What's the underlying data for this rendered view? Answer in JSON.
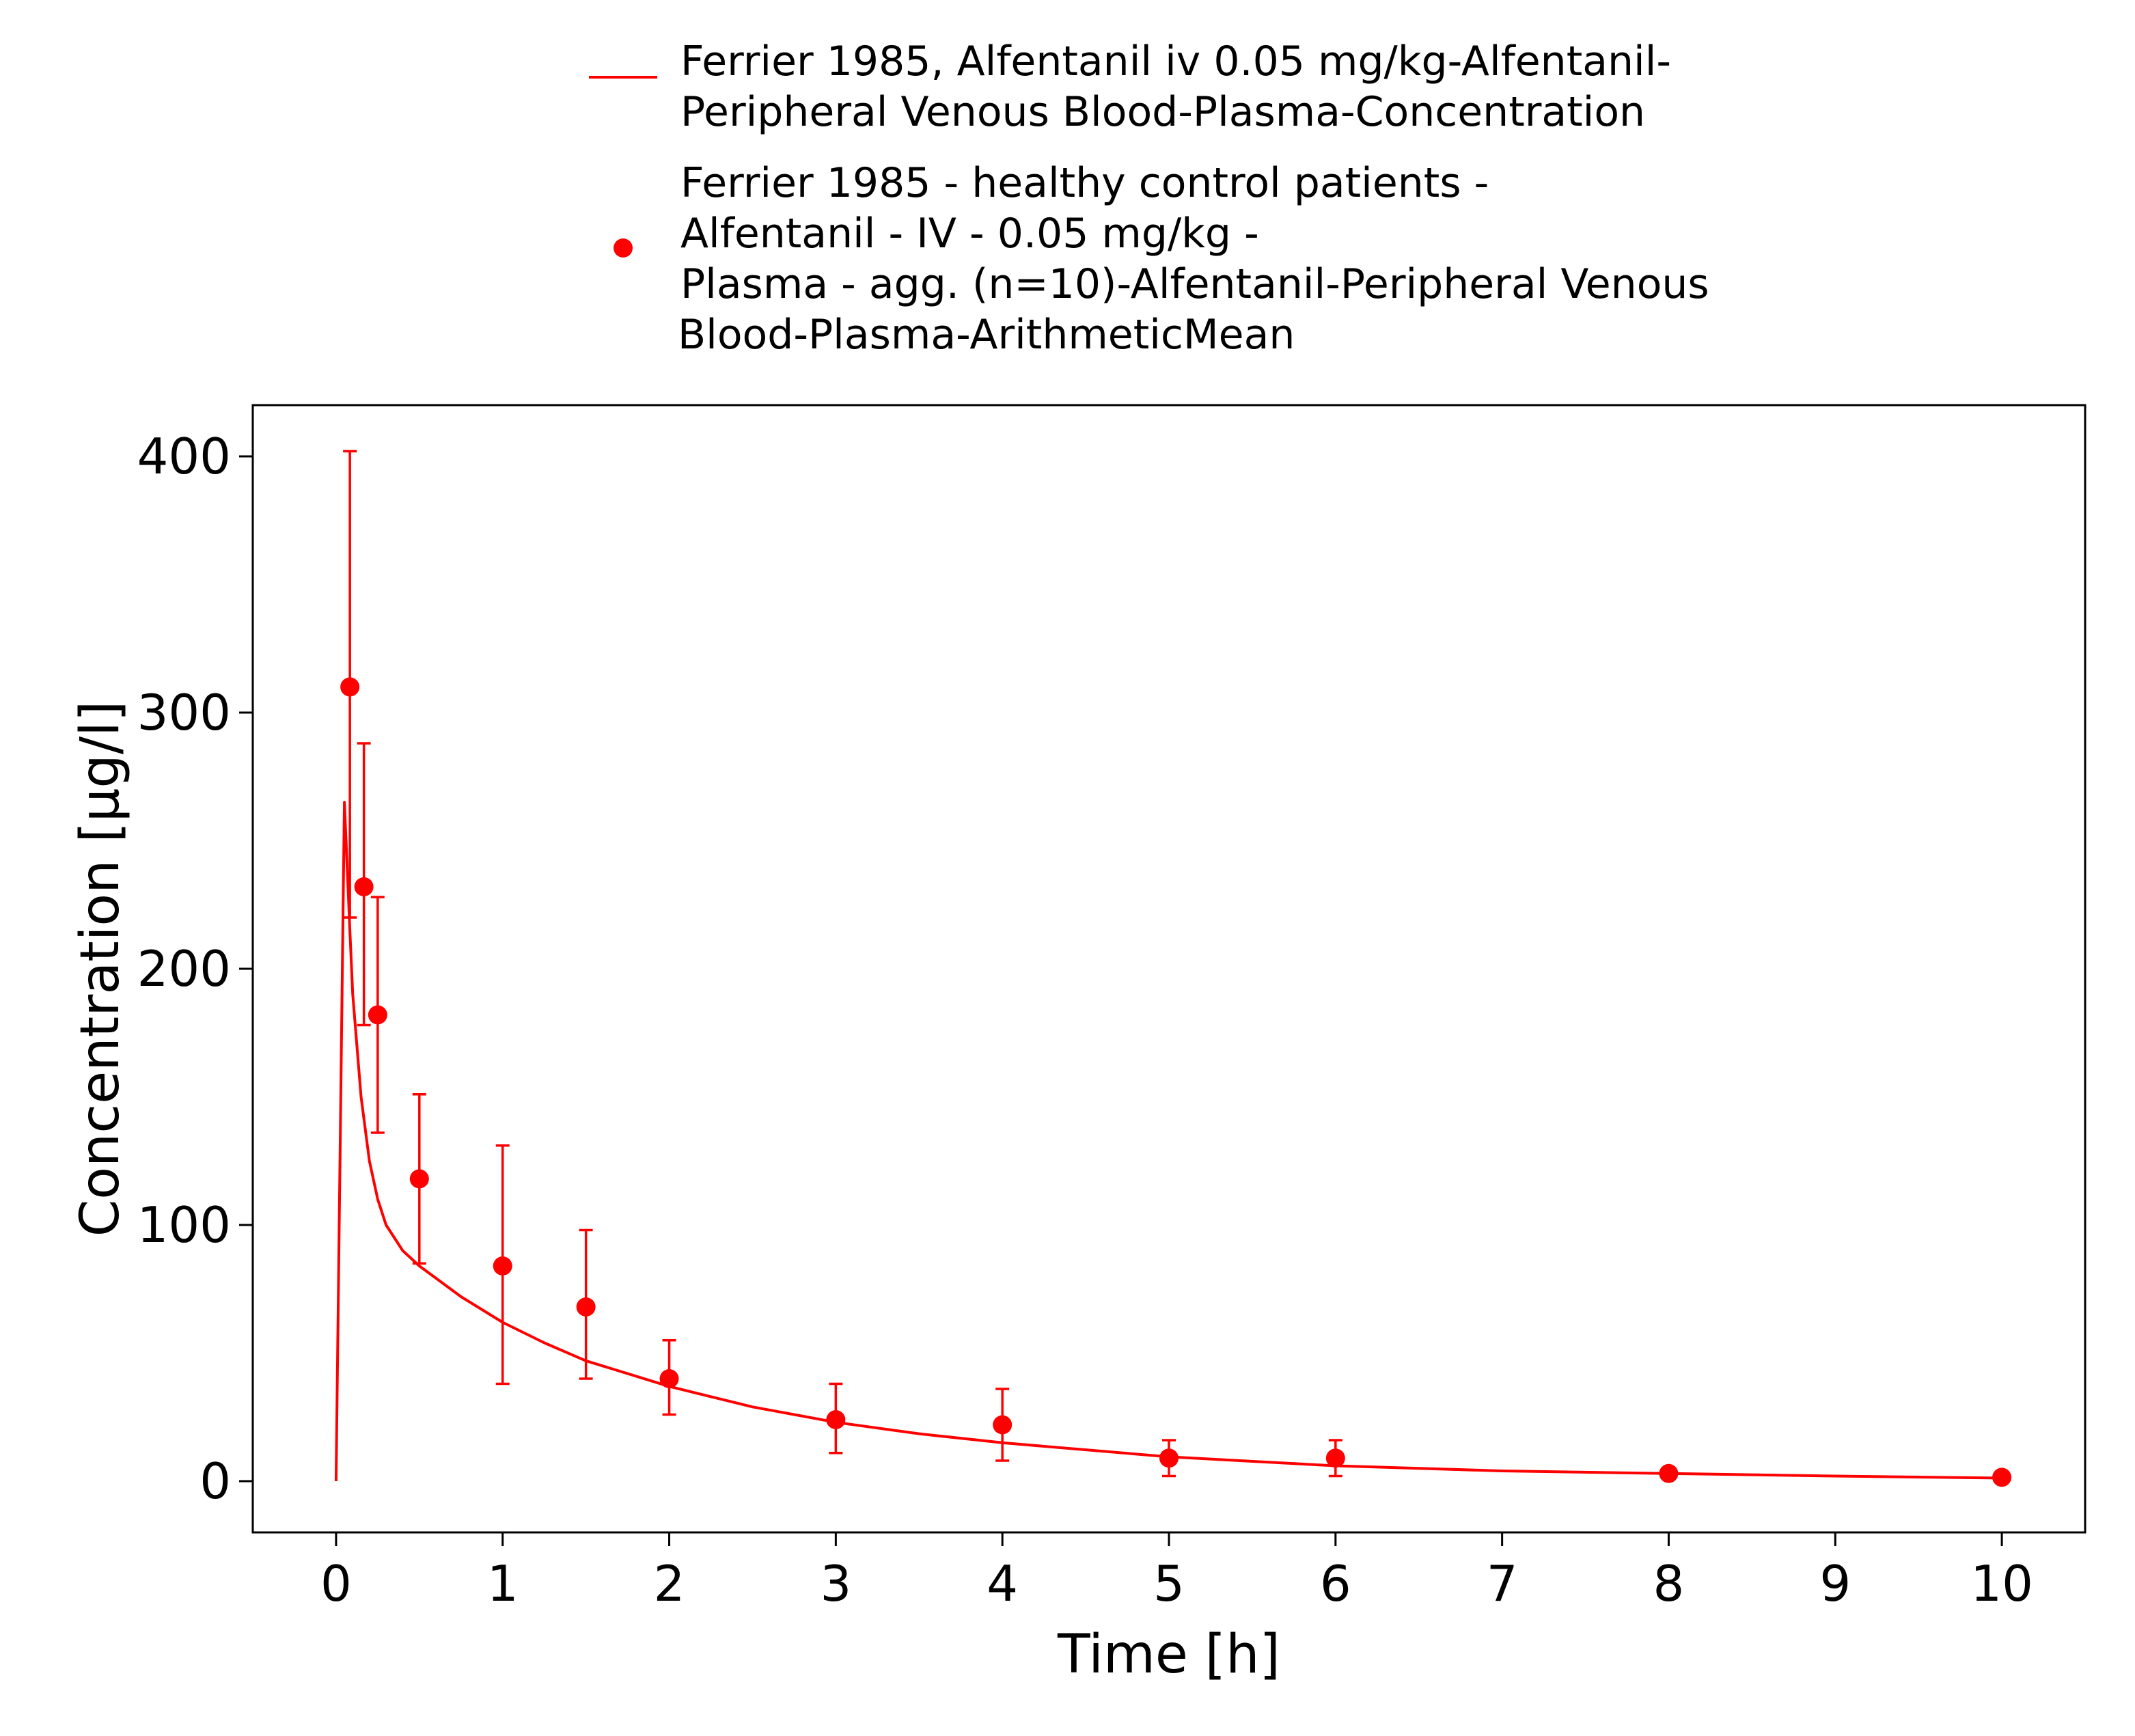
{
  "chart_data": {
    "type": "line",
    "xlabel": "Time [h]",
    "ylabel": "Concentration [µg/l]",
    "xlim": [
      -0.5,
      10.5
    ],
    "ylim": [
      -20,
      420
    ],
    "x_ticks": [
      0,
      1,
      2,
      3,
      4,
      5,
      6,
      7,
      8,
      9,
      10
    ],
    "y_ticks": [
      0,
      100,
      200,
      300,
      400
    ],
    "grid": false,
    "legend_position": "top",
    "colors": {
      "series": "#ff0000",
      "axis": "#000000"
    },
    "legend": [
      {
        "kind": "line",
        "lines": [
          "Ferrier 1985, Alfentanil iv 0.05 mg/kg-Alfentanil-",
          "Peripheral Venous Blood-Plasma-Concentration"
        ]
      },
      {
        "kind": "point",
        "lines": [
          "Ferrier 1985 - healthy control patients -",
          "Alfentanil - IV - 0.05 mg/kg -",
          "Plasma - agg. (n=10)-Alfentanil-Peripheral Venous",
          "Blood-Plasma-ArithmeticMean"
        ]
      }
    ],
    "series": [
      {
        "kind": "line",
        "x": [
          0,
          0.05,
          0.083,
          0.1,
          0.15,
          0.2,
          0.25,
          0.3,
          0.4,
          0.5,
          0.75,
          1,
          1.25,
          1.5,
          2,
          2.5,
          3,
          3.5,
          4,
          5,
          6,
          7,
          8,
          9,
          10
        ],
        "y": [
          0,
          265,
          215,
          190,
          150,
          125,
          110,
          100,
          90,
          84,
          72,
          62,
          54,
          47,
          37,
          29,
          23,
          18.5,
          15,
          9.5,
          6,
          4,
          3,
          2,
          1.2
        ]
      },
      {
        "kind": "points",
        "x": [
          0.083,
          0.167,
          0.25,
          0.5,
          1,
          1.5,
          2,
          3,
          4,
          5,
          6,
          8,
          10
        ],
        "y": [
          310,
          232,
          182,
          118,
          84,
          68,
          40,
          24,
          22,
          9,
          9,
          3,
          1.5
        ],
        "err_low": [
          220,
          178,
          136,
          85,
          38,
          40,
          26,
          11,
          8,
          2,
          2,
          1,
          0.5
        ],
        "err_high": [
          402,
          288,
          228,
          151,
          131,
          98,
          55,
          38,
          36,
          16,
          16,
          5,
          2.5
        ]
      }
    ]
  }
}
